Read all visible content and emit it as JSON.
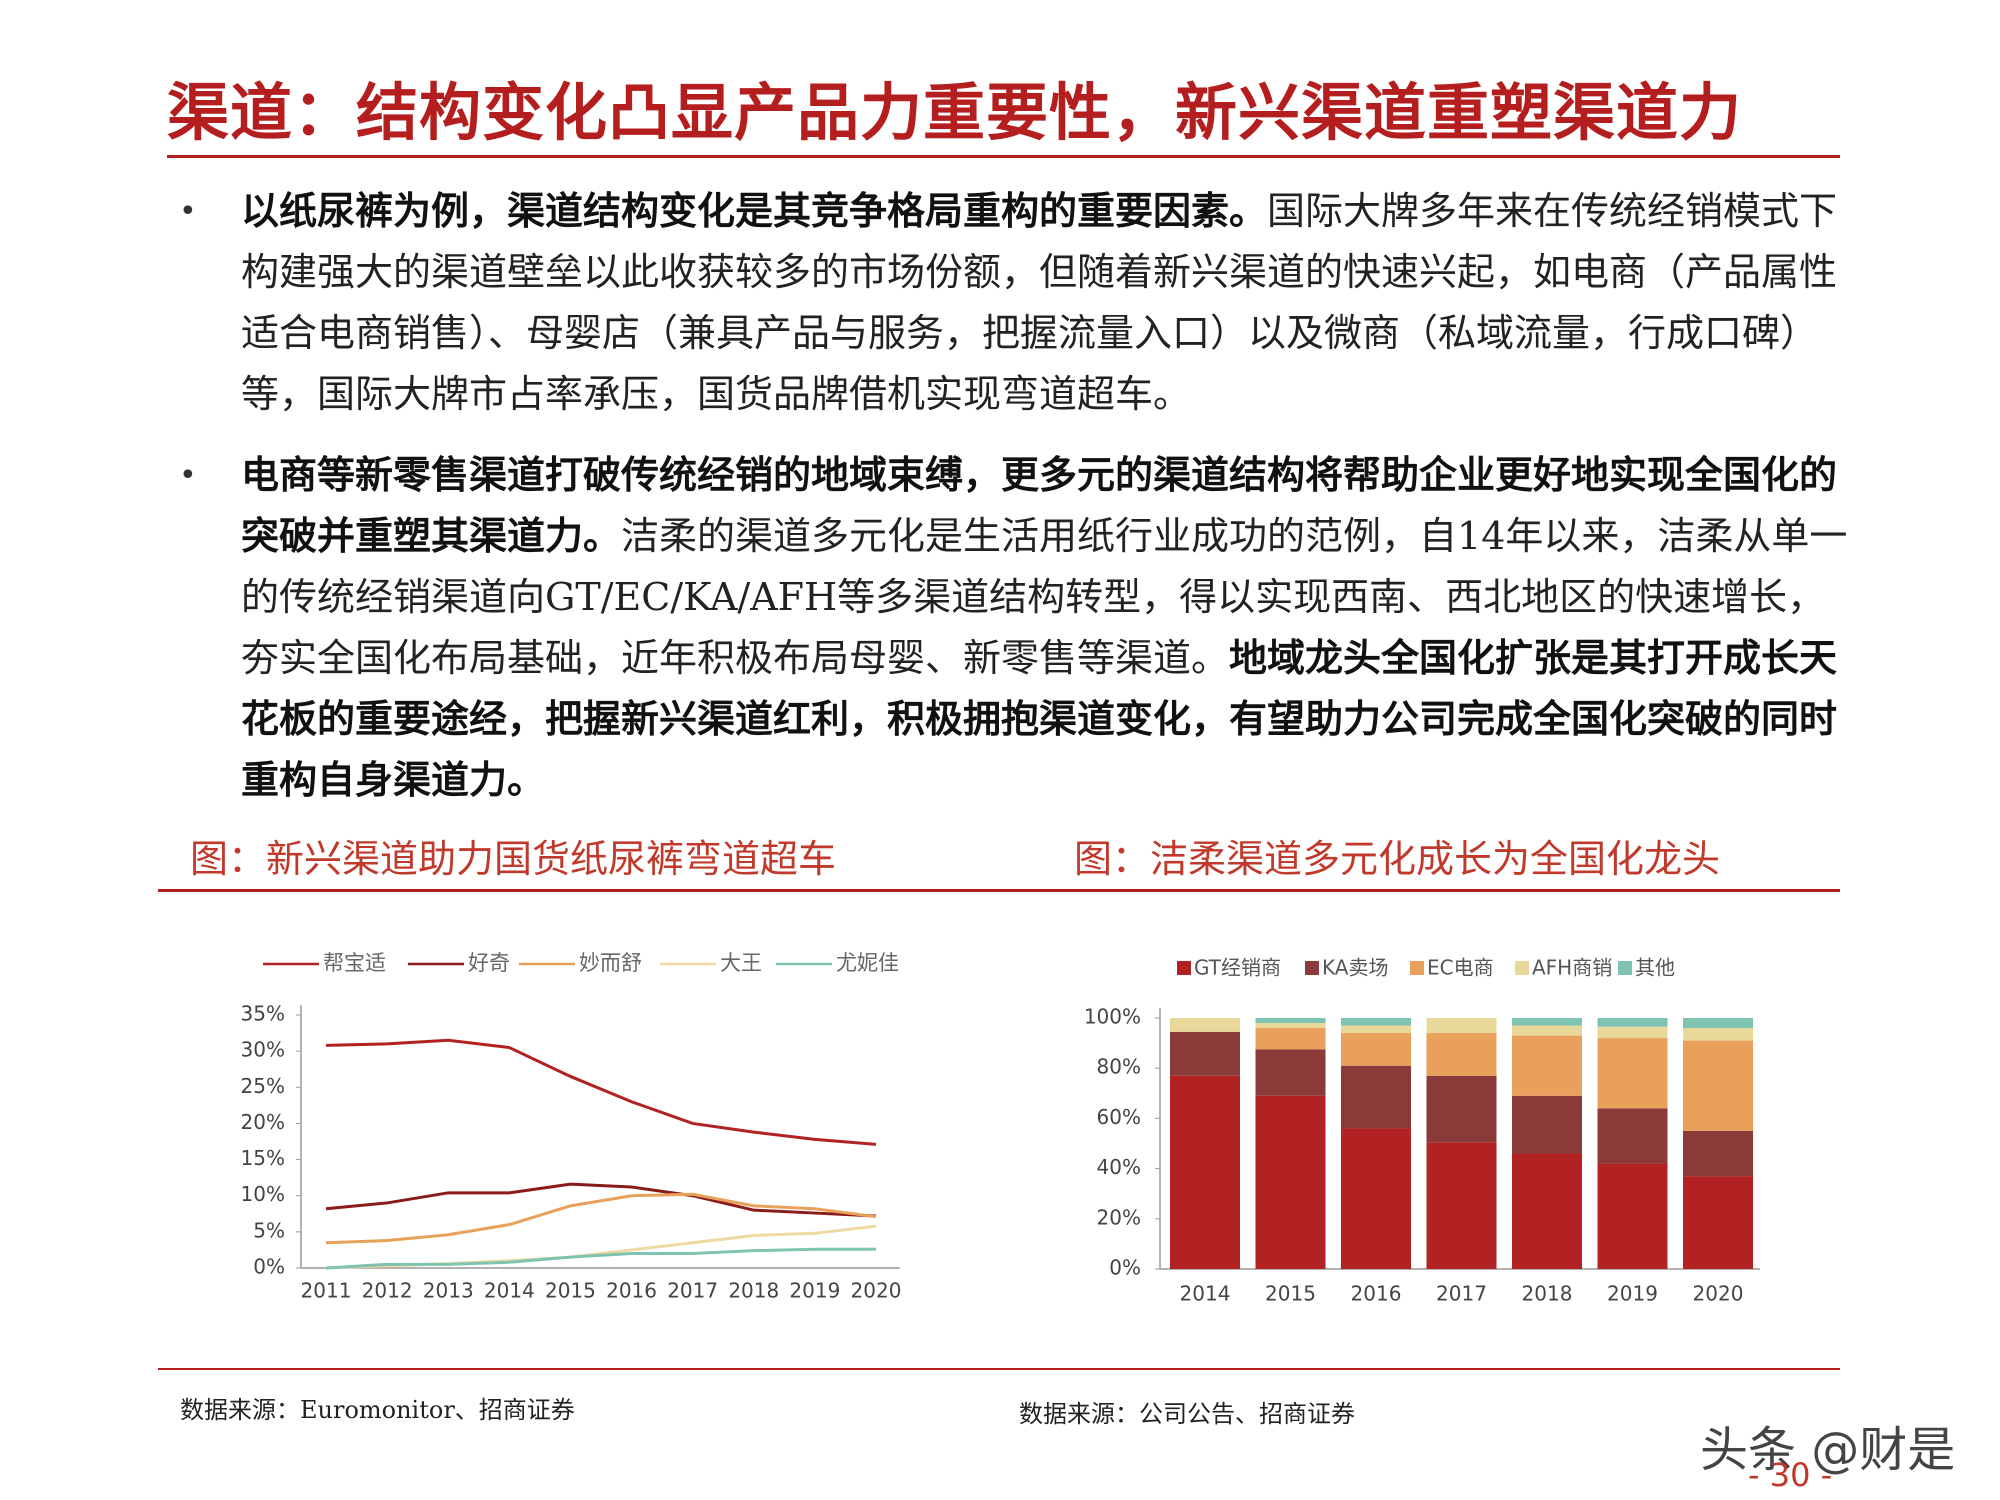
{
  "title": "渠道：结构变化凸显产品力重要性，新兴渠道重塑渠道力",
  "bullets": [
    [
      {
        "text": "以纸尿裤为例，渠道结构变化是其竞争格局重构的重要因素。",
        "bold": true
      },
      {
        "text": "国际大牌多年来在传统经销模式下构建强大的渠道壁垒以此收获较多的市场份额，但随着新兴渠道的快速兴起，如电商（产品属性适合电商销售）、母婴店（兼具产品与服务，把握流量入口）以及微商（私域流量，行成口碑）等，国际大牌市占率承压，国货品牌借机实现弯道超车。",
        "bold": false
      }
    ],
    [
      {
        "text": "电商等新零售渠道打破传统经销的地域束缚，更多元的渠道结构将帮助企业更好地实现全国化的突破并重塑其渠道力。",
        "bold": true
      },
      {
        "text": "洁柔的渠道多元化是生活用纸行业成功的范例，自14年以来，洁柔从单一的传统经销渠道向GT/EC/KA/AFH等多渠道结构转型，得以实现西南、西北地区的快速增长，夯实全国化布局基础，近年积极布局母婴、新零售等渠道。",
        "bold": false
      },
      {
        "text": "地域龙头全国化扩张是其打开成长天花板的重要途经，把握新兴渠道红利，积极拥抱渠道变化，有望助力公司完成全国化突破的同时重构自身渠道力。",
        "bold": true
      }
    ]
  ],
  "chart_data": [
    {
      "type": "line",
      "title": "图：新兴渠道助力国货纸尿裤弯道超车",
      "categories": [
        "2011",
        "2012",
        "2013",
        "2014",
        "2015",
        "2016",
        "2017",
        "2018",
        "2019",
        "2020"
      ],
      "series": [
        {
          "name": "帮宝适",
          "color": "#b22222",
          "values": [
            30.8,
            31,
            31.5,
            30.5,
            26.5,
            23,
            20,
            18.8,
            17.8,
            17.1
          ]
        },
        {
          "name": "好奇",
          "color": "#8b1a1a",
          "values": [
            8.2,
            9,
            10.4,
            10.4,
            11.6,
            11.2,
            10,
            8,
            7.6,
            7.2
          ]
        },
        {
          "name": "妙而舒",
          "color": "#e8a15a",
          "values": [
            3.5,
            3.8,
            4.6,
            6,
            8.6,
            10,
            10.2,
            8.6,
            8.2,
            7.1
          ]
        },
        {
          "name": "大王",
          "color": "#efd9a0",
          "values": [
            0,
            0.3,
            0.6,
            1,
            1.5,
            2.5,
            3.5,
            4.5,
            4.8,
            5.8
          ]
        },
        {
          "name": "尤妮佳",
          "color": "#7fc4b0",
          "values": [
            0,
            0.5,
            0.5,
            0.8,
            1.5,
            2,
            2,
            2.4,
            2.6,
            2.6
          ]
        }
      ],
      "ylim": [
        0,
        35
      ],
      "yticks": [
        {
          "value": 0,
          "label": "0%"
        },
        {
          "value": 5,
          "label": "5%"
        },
        {
          "value": 10,
          "label": "10%"
        },
        {
          "value": 15,
          "label": "15%"
        },
        {
          "value": 20,
          "label": "20%"
        },
        {
          "value": 25,
          "label": "25%"
        },
        {
          "value": 30,
          "label": "30%"
        },
        {
          "value": 35,
          "label": "35%"
        }
      ],
      "source": "数据来源：Euromonitor、招商证券"
    },
    {
      "type": "stacked-bar",
      "title": "图：洁柔渠道多元化成长为全国化龙头",
      "categories": [
        "2014",
        "2015",
        "2016",
        "2017",
        "2018",
        "2019",
        "2020"
      ],
      "series": [
        {
          "name": "GT经销商",
          "color": "#b22222",
          "values": [
            77,
            69,
            56,
            50.5,
            46,
            42,
            37
          ]
        },
        {
          "name": "KA卖场",
          "color": "#8b3a3a",
          "values": [
            17.5,
            18.5,
            25,
            26.5,
            23,
            22,
            18
          ]
        },
        {
          "name": "EC电商",
          "color": "#e8a05a",
          "values": [
            0,
            8.5,
            13,
            17,
            24,
            28,
            36
          ]
        },
        {
          "name": "AFH商销",
          "color": "#e8d89a",
          "values": [
            5.5,
            2,
            3,
            6,
            4,
            4.5,
            5
          ]
        },
        {
          "name": "其他",
          "color": "#7fc4b0",
          "values": [
            0,
            2,
            3,
            0,
            3,
            3.5,
            4
          ]
        }
      ],
      "ylim": [
        0,
        100
      ],
      "yticks": [
        {
          "value": 0,
          "label": "0%"
        },
        {
          "value": 20,
          "label": "20%"
        },
        {
          "value": 40,
          "label": "40%"
        },
        {
          "value": 60,
          "label": "60%"
        },
        {
          "value": 80,
          "label": "80%"
        },
        {
          "value": 100,
          "label": "100%"
        }
      ],
      "source": "数据来源：公司公告、招商证券"
    }
  ],
  "watermark": "头条 @财是",
  "page_number": "- 30 -"
}
